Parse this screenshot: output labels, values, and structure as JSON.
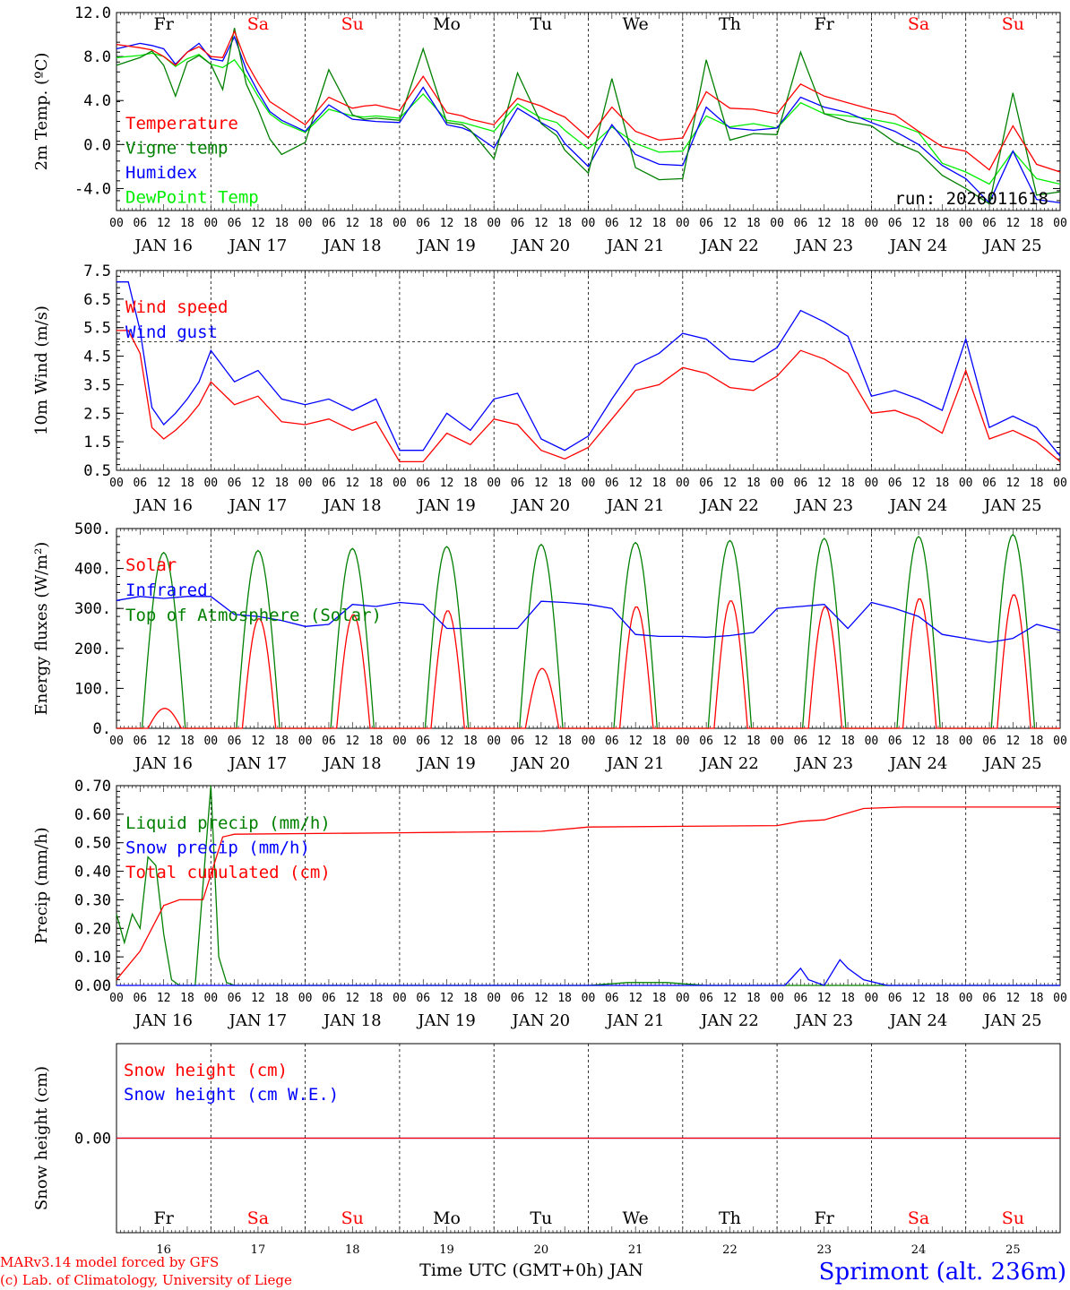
{
  "colors": {
    "red": "#ff0000",
    "green": "#008000",
    "blue": "#0000ff",
    "lime": "#00ee00",
    "black": "#000000"
  },
  "date_labels": [
    "JAN 16",
    "JAN 17",
    "JAN 18",
    "JAN 19",
    "JAN 20",
    "JAN 21",
    "JAN 22",
    "JAN 23",
    "JAN 24",
    "JAN 25"
  ],
  "hour_ticks": [
    "00",
    "06",
    "12",
    "18"
  ],
  "end_tick": "00",
  "days": [
    {
      "abbr": "Fr",
      "num": "16",
      "weekend": false
    },
    {
      "abbr": "Sa",
      "num": "17",
      "weekend": true
    },
    {
      "abbr": "Su",
      "num": "18",
      "weekend": true
    },
    {
      "abbr": "Mo",
      "num": "19",
      "weekend": false
    },
    {
      "abbr": "Tu",
      "num": "20",
      "weekend": false
    },
    {
      "abbr": "We",
      "num": "21",
      "weekend": false
    },
    {
      "abbr": "Th",
      "num": "22",
      "weekend": false
    },
    {
      "abbr": "Fr",
      "num": "23",
      "weekend": false
    },
    {
      "abbr": "Sa",
      "num": "24",
      "weekend": true
    },
    {
      "abbr": "Su",
      "num": "25",
      "weekend": true
    }
  ],
  "run_label": "run: 2026011618",
  "xlabel": "Time UTC (GMT+0h) JAN",
  "credit_model": "MARv3.14 model forced by GFS",
  "credit_lab": "(c) Lab. of Climatology, University of Liege",
  "station": "Sprimont (alt. 236m)",
  "chart_data": [
    {
      "id": "temp",
      "type": "line",
      "ylabel": "2m Temp. (ºC)",
      "ylim": [
        -6,
        12
      ],
      "yticks": [
        12,
        8,
        4,
        0,
        -4
      ],
      "ytick_labels": [
        "12.0",
        "8.0",
        "4.0",
        "0.0",
        "-4.0"
      ],
      "refline": 0,
      "x_hours": [
        0,
        6,
        9,
        12,
        15,
        18,
        21,
        24,
        27,
        30,
        33,
        36,
        39,
        42,
        48,
        54,
        60,
        63,
        66,
        72,
        78,
        84,
        88,
        90,
        96,
        102,
        108,
        112,
        114,
        120,
        126,
        132,
        138,
        144,
        150,
        156,
        162,
        168,
        174,
        180,
        186,
        192,
        198,
        204,
        210,
        216,
        222,
        228,
        234,
        240
      ],
      "series": [
        {
          "name": "Temperature",
          "color": "#ff0000",
          "values": [
            9.1,
            8.8,
            8.6,
            8.0,
            7.2,
            8.4,
            8.9,
            8.0,
            7.9,
            10.3,
            7.5,
            5.6,
            3.9,
            3.2,
            1.8,
            4.3,
            3.3,
            3.5,
            3.6,
            3.1,
            6.2,
            2.9,
            2.6,
            2.3,
            1.8,
            4.2,
            3.5,
            2.8,
            2.5,
            0.6,
            3.4,
            1.2,
            0.4,
            0.6,
            4.8,
            3.3,
            3.2,
            2.8,
            5.5,
            4.4,
            3.8,
            3.2,
            2.7,
            1.2,
            -0.2,
            -0.6,
            -2.3,
            1.7,
            -1.8,
            -2.5
          ]
        },
        {
          "name": "Vigne temp",
          "color": "#008000",
          "values": [
            7.2,
            7.9,
            8.5,
            7.2,
            4.4,
            7.5,
            8.1,
            7.3,
            5.0,
            10.6,
            5.5,
            3.2,
            0.5,
            -0.9,
            0.2,
            6.8,
            2.7,
            2.3,
            2.4,
            2.2,
            8.7,
            2.0,
            1.8,
            1.3,
            -1.3,
            6.5,
            1.9,
            0.8,
            -0.5,
            -2.6,
            6.0,
            -2.1,
            -3.2,
            -3.1,
            7.7,
            0.4,
            1.0,
            0.9,
            8.4,
            2.8,
            2.1,
            1.7,
            0.2,
            -0.7,
            -2.8,
            -4.0,
            -5.4,
            4.7,
            -4.6,
            -4.3
          ]
        },
        {
          "name": "Humidex",
          "color": "#0000ff",
          "values": [
            8.7,
            9.2,
            9.0,
            8.7,
            7.3,
            8.4,
            9.2,
            7.8,
            7.6,
            9.8,
            6.8,
            4.8,
            3.0,
            2.2,
            1.2,
            3.6,
            2.3,
            2.2,
            2.1,
            2.0,
            5.2,
            1.8,
            1.5,
            1.2,
            -0.3,
            3.3,
            2.0,
            1.2,
            0.1,
            -2.0,
            1.8,
            -0.9,
            -1.8,
            -1.9,
            3.4,
            1.5,
            1.3,
            1.5,
            4.3,
            3.4,
            2.9,
            2.0,
            1.2,
            0.0,
            -1.9,
            -3.1,
            -5.3,
            -0.6,
            -5.0,
            -5.3
          ]
        },
        {
          "name": "DewPoint Temp",
          "color": "#00ee00",
          "values": [
            7.9,
            8.1,
            8.3,
            8.0,
            7.1,
            7.8,
            8.2,
            7.3,
            7.0,
            7.7,
            6.2,
            4.4,
            2.8,
            2.0,
            1.1,
            3.2,
            2.6,
            2.5,
            2.6,
            2.4,
            4.6,
            2.2,
            2.0,
            1.8,
            1.2,
            3.7,
            2.4,
            2.0,
            1.3,
            -0.4,
            1.6,
            0.1,
            -0.7,
            -0.6,
            2.6,
            1.6,
            1.9,
            1.5,
            3.8,
            2.8,
            2.6,
            2.3,
            1.9,
            1.1,
            -1.7,
            -2.5,
            -3.6,
            -0.6,
            -3.1,
            -3.6
          ]
        }
      ],
      "legend": [
        "Temperature",
        "Vigne temp",
        "Humidex",
        "DewPoint Temp"
      ]
    },
    {
      "id": "wind",
      "type": "line",
      "ylabel": "10m Wind (m/s)",
      "ylim": [
        0.5,
        7.5
      ],
      "yticks": [
        7.5,
        6.5,
        5.5,
        4.5,
        3.5,
        2.5,
        1.5,
        0.5
      ],
      "ytick_labels": [
        "7.5",
        "6.5",
        "5.5",
        "4.5",
        "3.5",
        "2.5",
        "1.5",
        "0.5"
      ],
      "refline": 5.0,
      "x_hours": [
        0,
        3,
        6,
        9,
        12,
        15,
        18,
        21,
        24,
        30,
        36,
        42,
        48,
        54,
        60,
        66,
        72,
        78,
        84,
        90,
        96,
        102,
        108,
        114,
        120,
        126,
        132,
        138,
        144,
        150,
        156,
        162,
        168,
        174,
        180,
        186,
        192,
        198,
        204,
        210,
        216,
        222,
        228,
        234,
        240
      ],
      "series": [
        {
          "name": "Wind speed",
          "color": "#ff0000",
          "values": [
            5.4,
            5.4,
            4.6,
            2.0,
            1.6,
            1.9,
            2.3,
            2.8,
            3.6,
            2.8,
            3.1,
            2.2,
            2.1,
            2.3,
            1.9,
            2.2,
            0.8,
            0.8,
            1.8,
            1.4,
            2.3,
            2.1,
            1.2,
            0.9,
            1.3,
            2.3,
            3.3,
            3.5,
            4.1,
            3.9,
            3.4,
            3.3,
            3.8,
            4.7,
            4.4,
            3.9,
            2.5,
            2.6,
            2.3,
            1.8,
            4.0,
            1.6,
            1.9,
            1.5,
            0.8
          ]
        },
        {
          "name": "Wind gust",
          "color": "#0000ff",
          "values": [
            7.1,
            7.1,
            5.4,
            2.7,
            2.1,
            2.5,
            3.0,
            3.6,
            4.7,
            3.6,
            4.0,
            3.0,
            2.8,
            3.0,
            2.6,
            3.0,
            1.2,
            1.2,
            2.5,
            1.9,
            3.0,
            3.2,
            1.6,
            1.2,
            1.7,
            3.0,
            4.2,
            4.6,
            5.3,
            5.1,
            4.4,
            4.3,
            4.8,
            6.1,
            5.7,
            5.2,
            3.1,
            3.3,
            3.0,
            2.6,
            5.1,
            2.0,
            2.4,
            2.0,
            1.0
          ]
        }
      ],
      "legend": [
        "Wind speed",
        "Wind gust"
      ]
    },
    {
      "id": "energy",
      "type": "line",
      "ylabel": "Energy fluxes (W/m²)",
      "ylim": [
        0,
        500
      ],
      "yticks": [
        500,
        400,
        300,
        200,
        100,
        0
      ],
      "ytick_labels": [
        "500.",
        "400.",
        "300.",
        "200.",
        "100.",
        "0."
      ],
      "refline": null,
      "series": [
        {
          "name": "Solar",
          "color": "#ff0000",
          "peaks": [
            50,
            275,
            285,
            295,
            150,
            305,
            320,
            305,
            325,
            335
          ]
        },
        {
          "name": "Infrared",
          "color": "#0000ff",
          "x_hours": [
            0,
            6,
            12,
            18,
            24,
            30,
            36,
            42,
            48,
            54,
            60,
            66,
            72,
            78,
            84,
            90,
            96,
            102,
            108,
            114,
            120,
            126,
            132,
            138,
            144,
            150,
            156,
            162,
            168,
            174,
            180,
            186,
            192,
            198,
            204,
            210,
            216,
            222,
            228,
            234,
            240
          ],
          "values": [
            320,
            330,
            325,
            330,
            330,
            285,
            280,
            270,
            255,
            260,
            310,
            305,
            315,
            310,
            250,
            250,
            250,
            250,
            318,
            315,
            310,
            300,
            235,
            230,
            230,
            228,
            232,
            240,
            300,
            305,
            310,
            250,
            315,
            300,
            280,
            235,
            225,
            215,
            225,
            260,
            245
          ]
        },
        {
          "name": "Top of Atmosphere (Solar)",
          "color": "#008000",
          "peaks": [
            440,
            445,
            450,
            455,
            460,
            465,
            470,
            475,
            480,
            485
          ]
        }
      ],
      "legend": [
        "Solar",
        "Infrared",
        "Top of Atmosphere (Solar)"
      ]
    },
    {
      "id": "precip",
      "type": "line",
      "ylabel": "Precip (mm/h)",
      "ylim": [
        0,
        0.7
      ],
      "yticks": [
        0.7,
        0.6,
        0.5,
        0.4,
        0.3,
        0.2,
        0.1,
        0.0
      ],
      "ytick_labels": [
        "0.70",
        "0.60",
        "0.50",
        "0.40",
        "0.30",
        "0.20",
        "0.10",
        "0.00"
      ],
      "refline": null,
      "series": [
        {
          "name": "Liquid precip (mm/h)",
          "color": "#008000",
          "x_hours": [
            0,
            2,
            4,
            6,
            8,
            10,
            12,
            14,
            16,
            18,
            20,
            22,
            24,
            26,
            28,
            30,
            60,
            90,
            120,
            130,
            140,
            150,
            160,
            180,
            200,
            240
          ],
          "values": [
            0.25,
            0.15,
            0.25,
            0.2,
            0.45,
            0.42,
            0.18,
            0.02,
            0.0,
            0.0,
            0.0,
            0.35,
            0.7,
            0.1,
            0.01,
            0.0,
            0.0,
            0.0,
            0.0,
            0.01,
            0.01,
            0.0,
            0.0,
            0.0,
            0.0,
            0.0
          ]
        },
        {
          "name": "Snow precip (mm/h)",
          "color": "#0000ff",
          "x_hours": [
            0,
            170,
            174,
            176,
            180,
            184,
            186,
            190,
            196,
            240
          ],
          "values": [
            0.0,
            0.0,
            0.06,
            0.02,
            0.0,
            0.09,
            0.06,
            0.02,
            0.0,
            0.0
          ]
        },
        {
          "name": "Total cumulated (cm)",
          "color": "#ff0000",
          "x_hours": [
            0,
            6,
            12,
            16,
            22,
            27,
            30,
            72,
            108,
            120,
            168,
            174,
            180,
            190,
            200,
            240
          ],
          "values": [
            0.02,
            0.12,
            0.28,
            0.3,
            0.3,
            0.52,
            0.53,
            0.535,
            0.54,
            0.555,
            0.56,
            0.575,
            0.58,
            0.62,
            0.625,
            0.625
          ]
        }
      ],
      "legend": [
        "Liquid precip (mm/h)",
        "Snow precip (mm/h)",
        "Total cumulated (cm)"
      ]
    },
    {
      "id": "snow",
      "type": "line",
      "ylabel": "Snow height (cm)",
      "ylim": [
        -1,
        1
      ],
      "yticks": [
        0
      ],
      "ytick_labels": [
        "0.00"
      ],
      "refline": null,
      "series": [
        {
          "name": "Snow height (cm)",
          "color": "#ff0000",
          "x_hours": [
            0,
            240
          ],
          "values": [
            0,
            0
          ]
        },
        {
          "name": "Snow height (cm W.E.)",
          "color": "#0000ff",
          "x_hours": [
            0,
            240
          ],
          "values": [
            0,
            0
          ]
        }
      ],
      "legend": [
        "Snow height (cm)",
        "Snow height (cm W.E.)"
      ]
    }
  ]
}
